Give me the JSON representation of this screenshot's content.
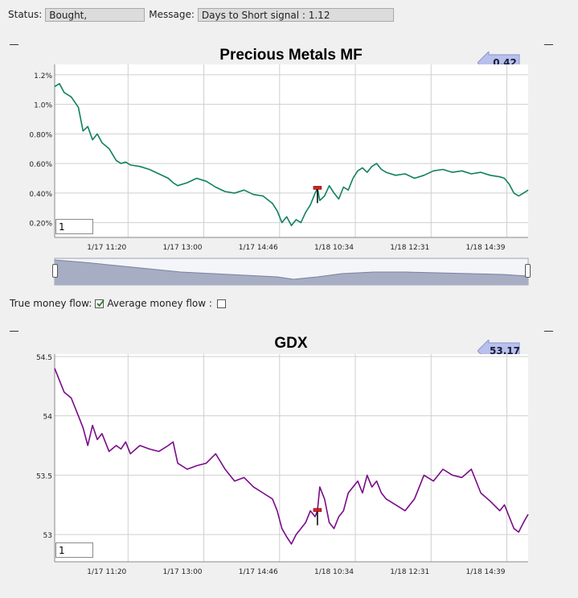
{
  "status": {
    "label": "Status:",
    "value": "Bought,"
  },
  "message": {
    "label": "Message:",
    "value": "Days to Short signal : 1.12"
  },
  "flow_options": {
    "true_label": "True money flow:",
    "true_checked": true,
    "average_label": "Average money flow :",
    "average_checked": false
  },
  "chart_data": [
    {
      "type": "line",
      "title": "Precious Metals MF",
      "current_value": "0.42",
      "range_value": "1",
      "line_color": "#0f8060",
      "ylim": [
        0.1,
        1.27
      ],
      "y_ticks": [
        0.2,
        0.4,
        0.6,
        0.8,
        1.0,
        1.2
      ],
      "y_tick_labels": [
        "0.20%",
        "0.40%",
        "0.60%",
        "0.80%",
        "1.0%",
        "1.2%"
      ],
      "x_tick_labels": [
        "1/17 11:20",
        "1/17 13:00",
        "1/17 14:46",
        "1/18 10:34",
        "1/18 12:31",
        "1/18 14:39"
      ],
      "x_tick_positions": [
        0.155,
        0.315,
        0.475,
        0.635,
        0.795,
        0.955
      ],
      "signal_x": 0.555,
      "xlabel": "",
      "ylabel": "",
      "series": [
        {
          "name": "Precious Metals MF",
          "x": [
            0,
            0.01,
            0.02,
            0.035,
            0.05,
            0.06,
            0.07,
            0.08,
            0.09,
            0.1,
            0.115,
            0.13,
            0.14,
            0.15,
            0.16,
            0.18,
            0.2,
            0.22,
            0.24,
            0.25,
            0.26,
            0.28,
            0.3,
            0.32,
            0.34,
            0.36,
            0.38,
            0.4,
            0.42,
            0.44,
            0.46,
            0.47,
            0.48,
            0.49,
            0.5,
            0.51,
            0.52,
            0.53,
            0.54,
            0.55,
            0.555,
            0.56,
            0.57,
            0.58,
            0.59,
            0.6,
            0.61,
            0.62,
            0.63,
            0.64,
            0.65,
            0.66,
            0.67,
            0.68,
            0.69,
            0.7,
            0.72,
            0.74,
            0.76,
            0.78,
            0.8,
            0.82,
            0.84,
            0.86,
            0.88,
            0.9,
            0.92,
            0.94,
            0.95,
            0.96,
            0.97,
            0.98,
            0.99,
            1.0
          ],
          "values": [
            1.12,
            1.14,
            1.08,
            1.05,
            0.98,
            0.82,
            0.85,
            0.76,
            0.8,
            0.74,
            0.7,
            0.62,
            0.6,
            0.61,
            0.59,
            0.58,
            0.56,
            0.53,
            0.5,
            0.47,
            0.45,
            0.47,
            0.5,
            0.48,
            0.44,
            0.41,
            0.4,
            0.42,
            0.39,
            0.38,
            0.33,
            0.28,
            0.2,
            0.24,
            0.18,
            0.22,
            0.2,
            0.27,
            0.32,
            0.4,
            0.43,
            0.35,
            0.38,
            0.45,
            0.4,
            0.36,
            0.44,
            0.42,
            0.5,
            0.55,
            0.57,
            0.54,
            0.58,
            0.6,
            0.56,
            0.54,
            0.52,
            0.53,
            0.5,
            0.52,
            0.55,
            0.56,
            0.54,
            0.55,
            0.53,
            0.54,
            0.52,
            0.51,
            0.5,
            0.46,
            0.4,
            0.38,
            0.4,
            0.42
          ]
        }
      ]
    },
    {
      "type": "line",
      "title": "GDX",
      "current_value": "53.17",
      "range_value": "1",
      "line_color": "#7a0a8a",
      "ylim": [
        52.77,
        54.52
      ],
      "y_ticks": [
        53,
        53.5,
        54,
        54.5
      ],
      "y_tick_labels": [
        "53",
        "53.5",
        "54",
        "54.5"
      ],
      "x_tick_labels": [
        "1/17 11:20",
        "1/17 13:00",
        "1/17 14:46",
        "1/18 10:34",
        "1/18 12:31",
        "1/18 14:39"
      ],
      "x_tick_positions": [
        0.155,
        0.315,
        0.475,
        0.635,
        0.795,
        0.955
      ],
      "signal_x": 0.555,
      "xlabel": "",
      "ylabel": "",
      "series": [
        {
          "name": "GDX",
          "x": [
            0,
            0.01,
            0.02,
            0.035,
            0.05,
            0.06,
            0.07,
            0.08,
            0.09,
            0.1,
            0.115,
            0.13,
            0.14,
            0.15,
            0.16,
            0.18,
            0.2,
            0.22,
            0.24,
            0.25,
            0.26,
            0.28,
            0.3,
            0.32,
            0.34,
            0.36,
            0.38,
            0.4,
            0.42,
            0.44,
            0.46,
            0.47,
            0.48,
            0.49,
            0.5,
            0.51,
            0.52,
            0.53,
            0.54,
            0.55,
            0.555,
            0.56,
            0.57,
            0.58,
            0.59,
            0.6,
            0.61,
            0.62,
            0.63,
            0.64,
            0.65,
            0.66,
            0.67,
            0.68,
            0.69,
            0.7,
            0.72,
            0.74,
            0.76,
            0.78,
            0.8,
            0.82,
            0.84,
            0.86,
            0.88,
            0.9,
            0.92,
            0.94,
            0.95,
            0.96,
            0.97,
            0.98,
            0.99,
            1.0
          ],
          "values": [
            54.4,
            54.3,
            54.2,
            54.15,
            54.0,
            53.9,
            53.75,
            53.92,
            53.8,
            53.85,
            53.7,
            53.75,
            53.72,
            53.78,
            53.68,
            53.75,
            53.72,
            53.7,
            53.75,
            53.78,
            53.6,
            53.55,
            53.58,
            53.6,
            53.68,
            53.55,
            53.45,
            53.48,
            53.4,
            53.35,
            53.3,
            53.2,
            53.05,
            52.98,
            52.92,
            53.0,
            53.05,
            53.1,
            53.2,
            53.15,
            53.2,
            53.4,
            53.3,
            53.1,
            53.05,
            53.15,
            53.2,
            53.35,
            53.4,
            53.45,
            53.35,
            53.5,
            53.4,
            53.45,
            53.35,
            53.3,
            53.25,
            53.2,
            53.3,
            53.5,
            53.45,
            53.55,
            53.5,
            53.48,
            53.55,
            53.35,
            53.28,
            53.2,
            53.25,
            53.15,
            53.05,
            53.02,
            53.1,
            53.17
          ]
        }
      ]
    }
  ]
}
